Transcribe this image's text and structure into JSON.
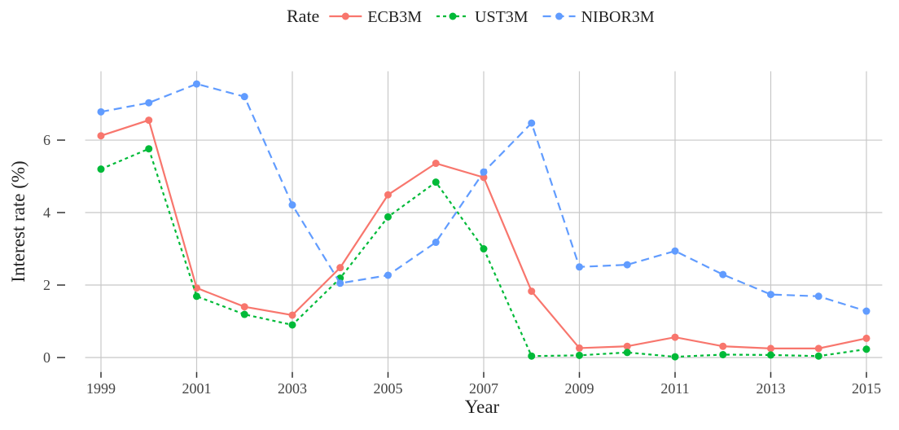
{
  "chart_data": {
    "type": "line",
    "x_label": "Year",
    "y_label": "Interest rate (%)",
    "legend_title": "Rate",
    "legend_position": "top",
    "x": [
      1999,
      2000,
      2001,
      2002,
      2003,
      2004,
      2005,
      2006,
      2007,
      2008,
      2009,
      2010,
      2011,
      2012,
      2013,
      2014,
      2015
    ],
    "series": [
      {
        "name": "ECB3M",
        "color": "#f8766d",
        "linestyle": "solid",
        "values": [
          6.12,
          6.55,
          1.92,
          1.4,
          1.17,
          2.48,
          4.49,
          5.36,
          4.97,
          1.83,
          0.26,
          0.31,
          0.56,
          0.31,
          0.25,
          0.25,
          0.53
        ]
      },
      {
        "name": "UST3M",
        "color": "#00ba38",
        "linestyle": "dotted",
        "values": [
          5.2,
          5.76,
          1.69,
          1.19,
          0.9,
          2.19,
          3.88,
          4.84,
          3.0,
          0.04,
          0.06,
          0.14,
          0.02,
          0.08,
          0.07,
          0.04,
          0.23
        ]
      },
      {
        "name": "NIBOR3M",
        "color": "#619cff",
        "linestyle": "dashed",
        "values": [
          6.78,
          7.03,
          7.55,
          7.2,
          4.21,
          2.05,
          2.27,
          3.18,
          5.12,
          6.47,
          2.5,
          2.56,
          2.94,
          2.29,
          1.74,
          1.69,
          1.28
        ]
      }
    ],
    "xlim": [
      1998.67,
      2015.33
    ],
    "xticks": [
      1999,
      2001,
      2003,
      2005,
      2007,
      2009,
      2011,
      2013,
      2015
    ],
    "ylim": [
      -0.4,
      7.9
    ],
    "yticks": [
      0,
      2,
      4,
      6
    ],
    "grid": true
  }
}
